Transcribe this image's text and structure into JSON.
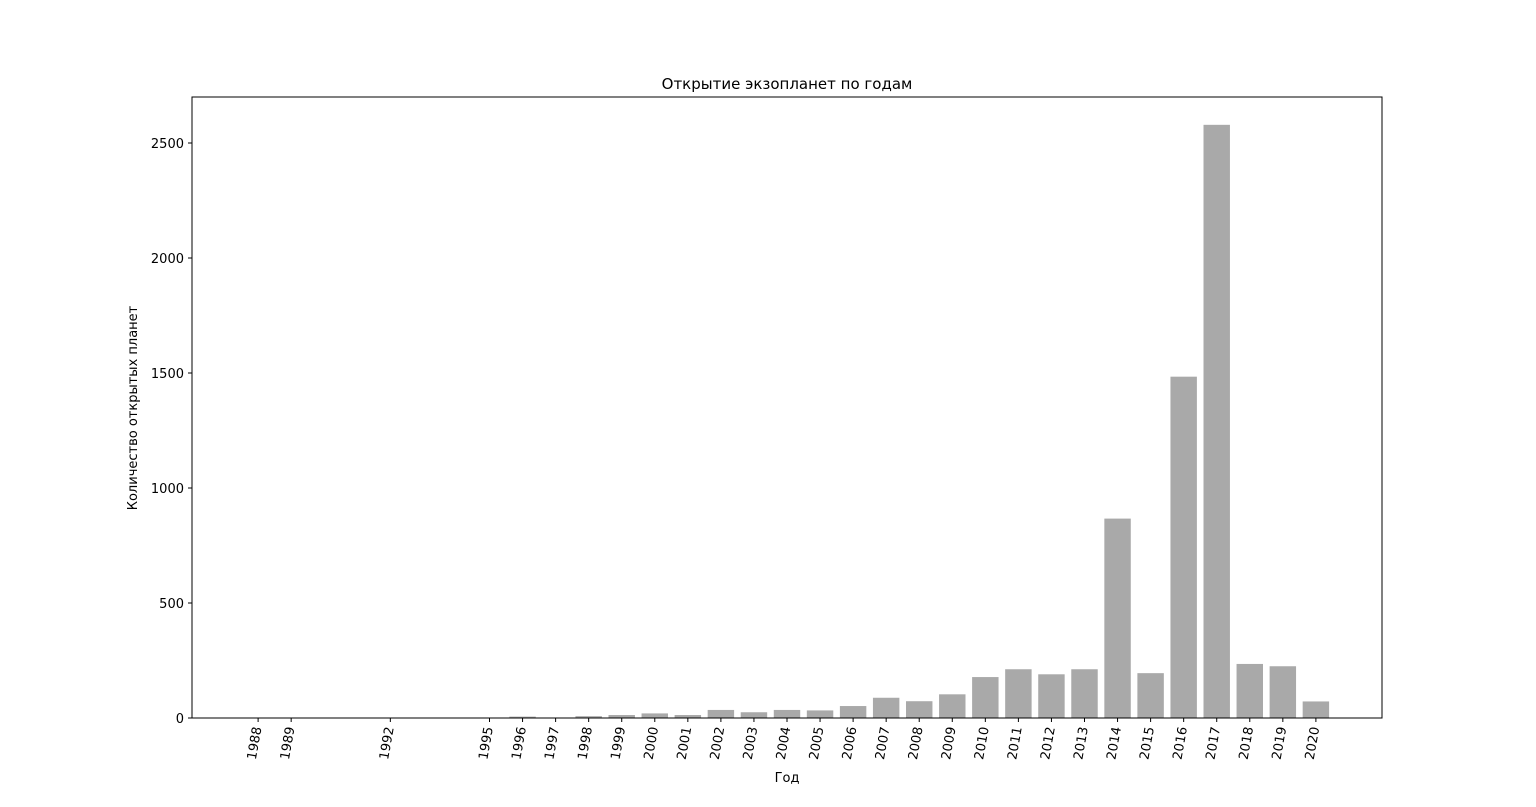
{
  "chart_data": {
    "type": "bar",
    "title": "Открытие экзопланет по годам",
    "xlabel": "Год",
    "ylabel": "Количество открытых планет",
    "x_tick_rotation_deg": -80,
    "ylim": [
      0,
      2700
    ],
    "yticks": [
      0,
      500,
      1000,
      1500,
      2000,
      2500
    ],
    "xlim": [
      1986,
      2022
    ],
    "bar_color": "#a9a9a9",
    "grid": false,
    "categories": [
      1988,
      1989,
      1992,
      1995,
      1996,
      1997,
      1998,
      1999,
      2000,
      2001,
      2002,
      2003,
      2004,
      2005,
      2006,
      2007,
      2008,
      2009,
      2010,
      2011,
      2012,
      2013,
      2014,
      2015,
      2016,
      2017,
      2018,
      2019,
      2020
    ],
    "values": [
      1,
      1,
      2,
      1,
      6,
      1,
      8,
      13,
      20,
      13,
      35,
      25,
      35,
      33,
      52,
      88,
      73,
      103,
      178,
      212,
      190,
      212,
      867,
      195,
      1484,
      2579,
      235,
      225,
      72
    ]
  }
}
